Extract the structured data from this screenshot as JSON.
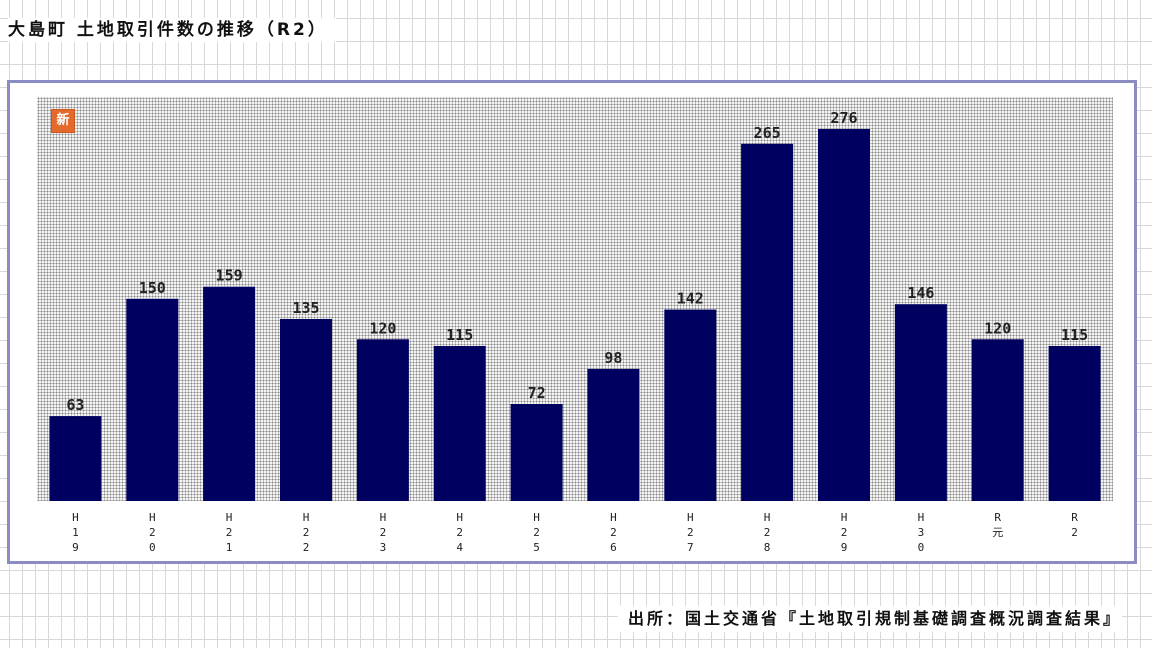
{
  "title": "大島町 土地取引件数の推移（R2）",
  "source": "出所：国土交通省『土地取引規制基礎調査概況調査結果』",
  "badge": "新",
  "colors": {
    "bar": "#000060",
    "frame": "#8c8cc4",
    "badge": "#e36a2a"
  },
  "chart_data": {
    "type": "bar",
    "categories": [
      "H19",
      "H20",
      "H21",
      "H22",
      "H23",
      "H24",
      "H25",
      "H26",
      "H27",
      "H28",
      "H29",
      "H30",
      "R元",
      "R2"
    ],
    "category_tick_labels": [
      [
        "H",
        "1",
        "9"
      ],
      [
        "H",
        "2",
        "0"
      ],
      [
        "H",
        "2",
        "1"
      ],
      [
        "H",
        "2",
        "2"
      ],
      [
        "H",
        "2",
        "3"
      ],
      [
        "H",
        "2",
        "4"
      ],
      [
        "H",
        "2",
        "5"
      ],
      [
        "H",
        "2",
        "6"
      ],
      [
        "H",
        "2",
        "7"
      ],
      [
        "H",
        "2",
        "8"
      ],
      [
        "H",
        "2",
        "9"
      ],
      [
        "H",
        "3",
        "0"
      ],
      [
        "R",
        "元"
      ],
      [
        "R",
        "2"
      ]
    ],
    "values": [
      63,
      150,
      159,
      135,
      120,
      115,
      72,
      98,
      142,
      265,
      276,
      146,
      120,
      115
    ],
    "title": "",
    "xlabel": "",
    "ylabel": "",
    "ylim": [
      0,
      276
    ],
    "grid": false,
    "data_labels": true
  }
}
